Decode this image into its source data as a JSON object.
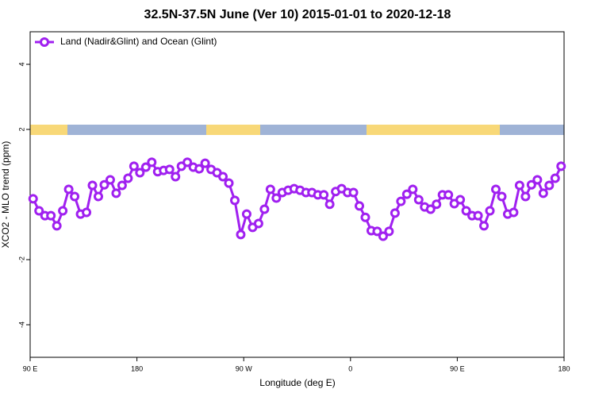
{
  "chart_data": {
    "type": "line",
    "title": "32.5N-37.5N June (Ver 10)   2015-01-01 to 2020-12-18",
    "x_label": "Longitude (deg E)",
    "y_label": "XCO2 - MLO trend (ppm)",
    "xlim": [
      90,
      540
    ],
    "xticks": [
      {
        "value": 90,
        "label": "90 E"
      },
      180,
      {
        "value": 270,
        "label": "90 W"
      },
      {
        "value": 360,
        "label": "0"
      },
      {
        "value": 450,
        "label": "90 E"
      },
      {
        "value": 540,
        "label": "180"
      }
    ],
    "ylim": [
      -5,
      5
    ],
    "yticks": [
      -4,
      -2,
      2,
      4
    ],
    "legend": "top-left",
    "x": [
      92.5,
      97.5,
      102.5,
      107.5,
      112.5,
      117.5,
      122.5,
      127.5,
      132.5,
      137.5,
      142.5,
      147.5,
      152.5,
      157.5,
      162.5,
      167.5,
      172.5,
      177.5,
      182.5,
      187.5,
      192.5,
      197.5,
      202.5,
      207.5,
      212.5,
      217.5,
      222.5,
      227.5,
      232.5,
      237.5,
      242.5,
      247.5,
      252.5,
      257.5,
      262.5,
      267.5,
      272.5,
      277.5,
      282.5,
      287.5,
      292.5,
      297.5,
      302.5,
      307.5,
      312.5,
      317.5,
      322.5,
      327.5,
      332.5,
      337.5,
      342.5,
      347.5,
      352.5,
      357.5,
      362.5,
      367.5,
      372.5,
      377.5,
      382.5,
      387.5,
      392.5,
      397.5,
      402.5,
      407.5,
      412.5,
      417.5,
      422.5,
      427.5,
      432.5,
      437.5,
      442.5,
      447.5,
      452.5,
      457.5,
      462.5,
      467.5,
      472.5,
      477.5,
      482.5,
      487.5,
      492.5,
      497.5,
      502.5,
      507.5,
      512.5,
      517.5,
      522.5,
      527.5,
      532.5,
      537.5
    ],
    "series": [
      {
        "name": "Land (Nadir&Glint) and Ocean (Glint)",
        "color": "#a020f0",
        "values": [
          -0.13,
          -0.5,
          -0.65,
          -0.65,
          -0.96,
          -0.5,
          0.16,
          -0.06,
          -0.6,
          -0.55,
          0.28,
          -0.06,
          0.3,
          0.45,
          0.04,
          0.28,
          0.5,
          0.87,
          0.67,
          0.84,
          0.99,
          0.7,
          0.74,
          0.77,
          0.55,
          0.87,
          0.99,
          0.84,
          0.79,
          0.96,
          0.77,
          0.67,
          0.55,
          0.35,
          -0.18,
          -1.23,
          -0.6,
          -1.01,
          -0.89,
          -0.45,
          0.16,
          -0.11,
          0.06,
          0.13,
          0.18,
          0.13,
          0.06,
          0.06,
          -0.01,
          -0.01,
          -0.3,
          0.09,
          0.18,
          0.06,
          0.06,
          -0.35,
          -0.7,
          -1.11,
          -1.13,
          -1.28,
          -1.13,
          -0.57,
          -0.21,
          0.01,
          0.16,
          -0.16,
          -0.38,
          -0.45,
          -0.3,
          -0.01,
          -0.01,
          -0.28,
          -0.16,
          -0.5,
          -0.65,
          -0.65,
          -0.96,
          -0.5,
          0.16,
          -0.06,
          -0.6,
          -0.55,
          0.28,
          -0.06,
          0.3,
          0.45,
          0.04,
          0.28,
          0.5,
          0.87
        ]
      }
    ]
  }
}
